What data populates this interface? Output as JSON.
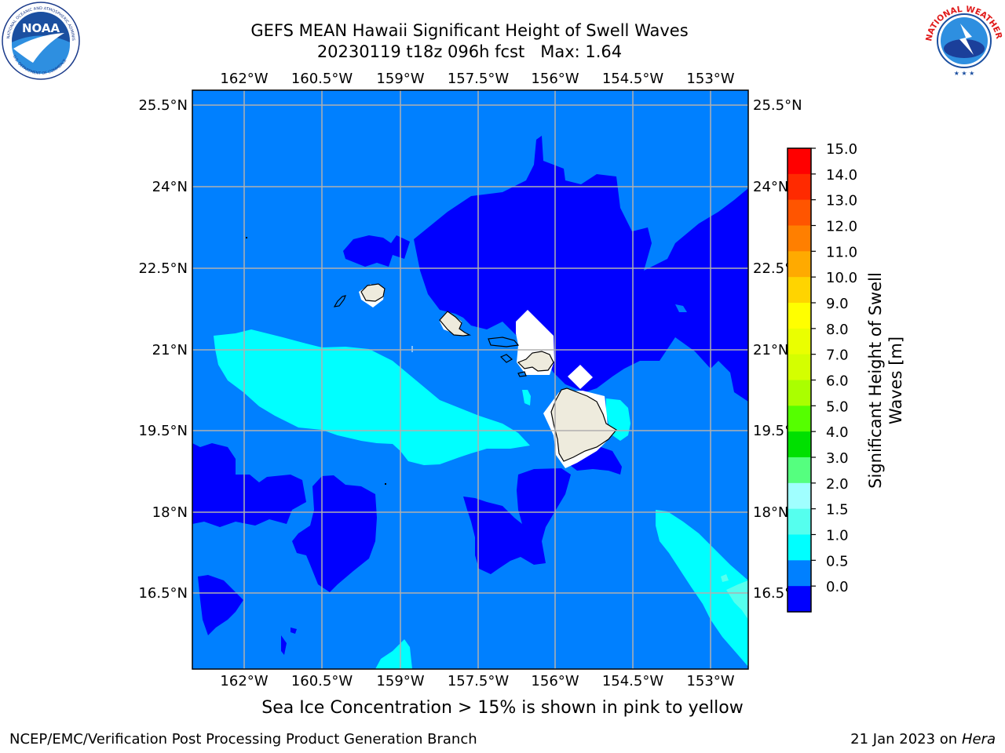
{
  "title": {
    "line1": "GEFS MEAN Hawaii Significant Height of Swell Waves",
    "line2": "20230119 t18z 096h fcst   Max: 1.64"
  },
  "logos": {
    "left": "noaa-logo",
    "right": "national-weather-service-logo",
    "left_ring_text": "NATIONAL OCEANIC AND ATMOSPHERIC ADMINISTRATION",
    "left_bottom_text": "U.S. DEPARTMENT OF COMMERCE",
    "left_center": "NOAA",
    "right_ring_text": "NATIONAL WEATHER SERVICE"
  },
  "map": {
    "lon_labels": [
      "162°W",
      "160.5°W",
      "159°W",
      "157.5°W",
      "156°W",
      "154.5°W",
      "153°W"
    ],
    "lat_labels": [
      "25.5°N",
      "24°N",
      "22.5°N",
      "21°N",
      "19.5°N",
      "18°N",
      "16.5°N"
    ],
    "background_color": "#0080ff",
    "land_color": "#eeebdd"
  },
  "colorbar": {
    "label": "Significant Height of Swell Waves [m]",
    "ticks": [
      "15.0",
      "14.0",
      "13.0",
      "12.0",
      "11.0",
      "10.0",
      "9.0",
      "8.0",
      "7.0",
      "6.0",
      "5.0",
      "4.0",
      "3.0",
      "2.0",
      "1.5",
      "1.0",
      "0.5",
      "0.0"
    ],
    "colors_top_to_bottom": [
      "#ff0000",
      "#ff2a00",
      "#ff5500",
      "#ff7f00",
      "#ffaa00",
      "#ffd400",
      "#ffff00",
      "#eaff00",
      "#d4ff00",
      "#aaff00",
      "#55ff00",
      "#00e000",
      "#55ff7f",
      "#a0ffff",
      "#55ffee",
      "#00ffff",
      "#0080ff",
      "#0000ff"
    ]
  },
  "footer": {
    "ice_note": "Sea Ice Concentration > 15% is shown in pink to yellow",
    "branch": "NCEP/EMC/Verification Post Processing Product Generation Branch",
    "date_prefix": "21 Jan 2023 on ",
    "machine": "Hera"
  }
}
